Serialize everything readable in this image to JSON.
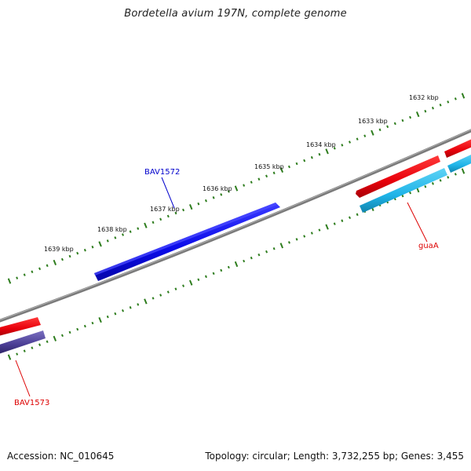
{
  "title": "Bordetella avium 197N, complete genome",
  "footer": {
    "accession": "Accession: NC_010645",
    "summary": "Topology: circular; Length: 3,732,255 bp; Genes: 3,455"
  },
  "colors": {
    "backbone": "#808080",
    "tick": "#2e7d1e",
    "forward_gene": "#e8000b",
    "reverse_gene": "#1fb4e8",
    "selected_gene": "#0a0ae8",
    "reverse_gene_alt": "#4a3d94",
    "label_red": "#dd0000",
    "label_blue": "#0000cc"
  },
  "ruler": {
    "labels": [
      "1632 kbp",
      "1633 kbp",
      "1634 kbp",
      "1635 kbp",
      "1636 kbp",
      "1637 kbp",
      "1638 kbp",
      "1639 kbp"
    ]
  },
  "gene_labels": {
    "bav1572": "BAV1572",
    "guaA": "guaA",
    "bav1573": "BAV1573"
  }
}
